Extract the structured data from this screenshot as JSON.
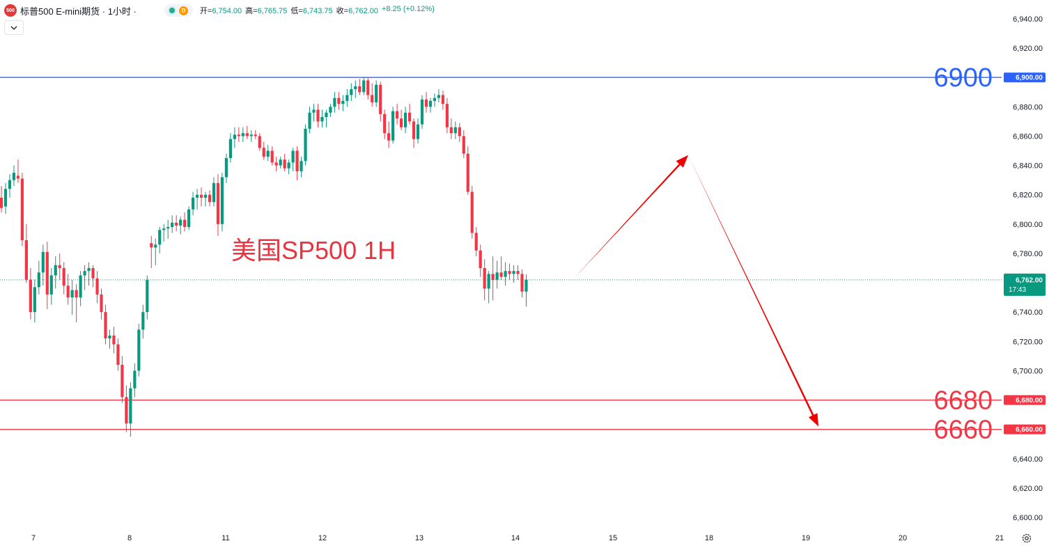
{
  "header": {
    "logo_text": "500",
    "title": "标普500 E-mini期货 · 1小时 ·",
    "interval_badge": "D",
    "ohlc": [
      {
        "label": "开=",
        "value": "6,754.00"
      },
      {
        "label": "高=",
        "value": "6,765.75"
      },
      {
        "label": "低=",
        "value": "6,743.75"
      },
      {
        "label": "收=",
        "value": "6,762.00"
      },
      {
        "label": "",
        "value": "+8.25 (+0.12%)"
      }
    ],
    "collapse_icon": "chevron-down-icon"
  },
  "colors": {
    "up": "#089981",
    "down": "#f23645",
    "resistance": "#2962ff",
    "support": "#f23645",
    "annotation": "#e8343f",
    "arrow": "#f20000"
  },
  "chart_data": {
    "type": "candlestick",
    "title": "美国SP500 1H",
    "x_tick_labels": [
      "7",
      "8",
      "11",
      "12",
      "13",
      "14",
      "15",
      "18",
      "19",
      "20",
      "21"
    ],
    "y_tick_labels": [
      "6,940.00",
      "6,920.00",
      "6,900.00",
      "6,880.00",
      "6,860.00",
      "6,840.00",
      "6,820.00",
      "6,800.00",
      "6,780.00",
      "6,760.00",
      "6,740.00",
      "6,720.00",
      "6,700.00",
      "6,680.00",
      "6,660.00",
      "6,640.00",
      "6,620.00",
      "6,600.00"
    ],
    "ylim": [
      6595,
      6943
    ],
    "last_price": {
      "value": 6762.0,
      "label": "6,762.00",
      "countdown": "17:43"
    },
    "horizontal_lines": [
      {
        "price": 6900,
        "label": "6900",
        "tag": "6,900.00",
        "color": "#2962ff"
      },
      {
        "price": 6680,
        "label": "6680",
        "tag": "6,680.00",
        "color": "#f23645"
      },
      {
        "price": 6660,
        "label": "6660",
        "tag": "6,660.00",
        "color": "#f23645"
      }
    ],
    "projection_path": [
      {
        "day": "14",
        "hour": 14,
        "price": 6763
      },
      {
        "day": "15",
        "hour": 18,
        "price": 6847
      },
      {
        "day": "19",
        "hour": 3,
        "price": 6662
      }
    ],
    "candles": [
      {
        "o": 6818,
        "h": 6826,
        "l": 6808,
        "c": 6811
      },
      {
        "o": 6812,
        "h": 6828,
        "l": 6807,
        "c": 6824
      },
      {
        "o": 6824,
        "h": 6834,
        "l": 6818,
        "c": 6830
      },
      {
        "o": 6830,
        "h": 6840,
        "l": 6826,
        "c": 6835
      },
      {
        "o": 6833,
        "h": 6844,
        "l": 6828,
        "c": 6831
      },
      {
        "o": 6831,
        "h": 6835,
        "l": 6785,
        "c": 6789
      },
      {
        "o": 6789,
        "h": 6800,
        "l": 6760,
        "c": 6762
      },
      {
        "o": 6762,
        "h": 6770,
        "l": 6735,
        "c": 6740
      },
      {
        "o": 6740,
        "h": 6762,
        "l": 6733,
        "c": 6757
      },
      {
        "o": 6757,
        "h": 6775,
        "l": 6752,
        "c": 6767
      },
      {
        "o": 6767,
        "h": 6786,
        "l": 6758,
        "c": 6781
      },
      {
        "o": 6781,
        "h": 6788,
        "l": 6742,
        "c": 6752
      },
      {
        "o": 6752,
        "h": 6770,
        "l": 6745,
        "c": 6765
      },
      {
        "o": 6765,
        "h": 6778,
        "l": 6756,
        "c": 6772
      },
      {
        "o": 6772,
        "h": 6780,
        "l": 6762,
        "c": 6770
      },
      {
        "o": 6770,
        "h": 6774,
        "l": 6752,
        "c": 6758
      },
      {
        "o": 6758,
        "h": 6766,
        "l": 6745,
        "c": 6750
      },
      {
        "o": 6750,
        "h": 6762,
        "l": 6738,
        "c": 6755
      },
      {
        "o": 6755,
        "h": 6759,
        "l": 6733,
        "c": 6750
      },
      {
        "o": 6750,
        "h": 6768,
        "l": 6744,
        "c": 6765
      },
      {
        "o": 6765,
        "h": 6772,
        "l": 6755,
        "c": 6768
      },
      {
        "o": 6768,
        "h": 6774,
        "l": 6758,
        "c": 6770
      },
      {
        "o": 6770,
        "h": 6772,
        "l": 6757,
        "c": 6763
      },
      {
        "o": 6763,
        "h": 6768,
        "l": 6746,
        "c": 6752
      },
      {
        "o": 6752,
        "h": 6756,
        "l": 6735,
        "c": 6740
      },
      {
        "o": 6740,
        "h": 6745,
        "l": 6718,
        "c": 6722
      },
      {
        "o": 6722,
        "h": 6728,
        "l": 6715,
        "c": 6724
      },
      {
        "o": 6724,
        "h": 6730,
        "l": 6712,
        "c": 6718
      },
      {
        "o": 6718,
        "h": 6722,
        "l": 6700,
        "c": 6704
      },
      {
        "o": 6704,
        "h": 6710,
        "l": 6678,
        "c": 6682
      },
      {
        "o": 6682,
        "h": 6690,
        "l": 6658,
        "c": 6664
      },
      {
        "o": 6664,
        "h": 6692,
        "l": 6655,
        "c": 6688
      },
      {
        "o": 6688,
        "h": 6705,
        "l": 6682,
        "c": 6700
      },
      {
        "o": 6700,
        "h": 6732,
        "l": 6696,
        "c": 6728
      },
      {
        "o": 6728,
        "h": 6745,
        "l": 6722,
        "c": 6740
      },
      {
        "o": 6740,
        "h": 6765,
        "l": 6735,
        "c": 6762
      },
      {
        "o": 6787,
        "h": 6792,
        "l": 6770,
        "c": 6784
      },
      {
        "o": 6784,
        "h": 6790,
        "l": 6772,
        "c": 6786
      },
      {
        "o": 6786,
        "h": 6798,
        "l": 6780,
        "c": 6796
      },
      {
        "o": 6796,
        "h": 6800,
        "l": 6788,
        "c": 6797
      },
      {
        "o": 6797,
        "h": 6803,
        "l": 6790,
        "c": 6798
      },
      {
        "o": 6798,
        "h": 6806,
        "l": 6794,
        "c": 6801
      },
      {
        "o": 6801,
        "h": 6806,
        "l": 6795,
        "c": 6799
      },
      {
        "o": 6799,
        "h": 6805,
        "l": 6793,
        "c": 6803
      },
      {
        "o": 6803,
        "h": 6808,
        "l": 6795,
        "c": 6798
      },
      {
        "o": 6798,
        "h": 6812,
        "l": 6796,
        "c": 6810
      },
      {
        "o": 6810,
        "h": 6822,
        "l": 6806,
        "c": 6818
      },
      {
        "o": 6818,
        "h": 6824,
        "l": 6810,
        "c": 6820
      },
      {
        "o": 6820,
        "h": 6825,
        "l": 6812,
        "c": 6818
      },
      {
        "o": 6818,
        "h": 6822,
        "l": 6812,
        "c": 6820
      },
      {
        "o": 6820,
        "h": 6823,
        "l": 6812,
        "c": 6815
      },
      {
        "o": 6815,
        "h": 6832,
        "l": 6812,
        "c": 6828
      },
      {
        "o": 6828,
        "h": 6834,
        "l": 6792,
        "c": 6800
      },
      {
        "o": 6800,
        "h": 6835,
        "l": 6795,
        "c": 6832
      },
      {
        "o": 6832,
        "h": 6848,
        "l": 6828,
        "c": 6845
      },
      {
        "o": 6845,
        "h": 6862,
        "l": 6842,
        "c": 6858
      },
      {
        "o": 6858,
        "h": 6866,
        "l": 6852,
        "c": 6861
      },
      {
        "o": 6861,
        "h": 6866,
        "l": 6856,
        "c": 6860
      },
      {
        "o": 6860,
        "h": 6866,
        "l": 6856,
        "c": 6862
      },
      {
        "o": 6862,
        "h": 6867,
        "l": 6858,
        "c": 6860
      },
      {
        "o": 6860,
        "h": 6864,
        "l": 6856,
        "c": 6861
      },
      {
        "o": 6861,
        "h": 6864,
        "l": 6858,
        "c": 6860
      },
      {
        "o": 6860,
        "h": 6862,
        "l": 6850,
        "c": 6852
      },
      {
        "o": 6852,
        "h": 6856,
        "l": 6844,
        "c": 6846
      },
      {
        "o": 6846,
        "h": 6854,
        "l": 6843,
        "c": 6850
      },
      {
        "o": 6850,
        "h": 6853,
        "l": 6840,
        "c": 6842
      },
      {
        "o": 6842,
        "h": 6846,
        "l": 6836,
        "c": 6840
      },
      {
        "o": 6840,
        "h": 6846,
        "l": 6838,
        "c": 6844
      },
      {
        "o": 6844,
        "h": 6848,
        "l": 6836,
        "c": 6838
      },
      {
        "o": 6838,
        "h": 6844,
        "l": 6834,
        "c": 6842
      },
      {
        "o": 6842,
        "h": 6852,
        "l": 6836,
        "c": 6850
      },
      {
        "o": 6850,
        "h": 6853,
        "l": 6830,
        "c": 6836
      },
      {
        "o": 6836,
        "h": 6846,
        "l": 6832,
        "c": 6843
      },
      {
        "o": 6843,
        "h": 6868,
        "l": 6840,
        "c": 6865
      },
      {
        "o": 6865,
        "h": 6880,
        "l": 6862,
        "c": 6876
      },
      {
        "o": 6876,
        "h": 6882,
        "l": 6870,
        "c": 6878
      },
      {
        "o": 6878,
        "h": 6882,
        "l": 6866,
        "c": 6870
      },
      {
        "o": 6870,
        "h": 6878,
        "l": 6866,
        "c": 6873
      },
      {
        "o": 6873,
        "h": 6878,
        "l": 6866,
        "c": 6876
      },
      {
        "o": 6876,
        "h": 6882,
        "l": 6873,
        "c": 6880
      },
      {
        "o": 6880,
        "h": 6890,
        "l": 6876,
        "c": 6886
      },
      {
        "o": 6886,
        "h": 6890,
        "l": 6878,
        "c": 6882
      },
      {
        "o": 6882,
        "h": 6888,
        "l": 6877,
        "c": 6884
      },
      {
        "o": 6884,
        "h": 6892,
        "l": 6880,
        "c": 6888
      },
      {
        "o": 6888,
        "h": 6896,
        "l": 6884,
        "c": 6892
      },
      {
        "o": 6892,
        "h": 6898,
        "l": 6886,
        "c": 6894
      },
      {
        "o": 6894,
        "h": 6899,
        "l": 6888,
        "c": 6890
      },
      {
        "o": 6890,
        "h": 6900,
        "l": 6888,
        "c": 6898
      },
      {
        "o": 6898,
        "h": 6900,
        "l": 6885,
        "c": 6888
      },
      {
        "o": 6888,
        "h": 6896,
        "l": 6880,
        "c": 6883
      },
      {
        "o": 6883,
        "h": 6898,
        "l": 6880,
        "c": 6895
      },
      {
        "o": 6895,
        "h": 6897,
        "l": 6870,
        "c": 6875
      },
      {
        "o": 6875,
        "h": 6878,
        "l": 6858,
        "c": 6862
      },
      {
        "o": 6862,
        "h": 6870,
        "l": 6852,
        "c": 6857
      },
      {
        "o": 6857,
        "h": 6880,
        "l": 6855,
        "c": 6877
      },
      {
        "o": 6877,
        "h": 6882,
        "l": 6868,
        "c": 6872
      },
      {
        "o": 6872,
        "h": 6878,
        "l": 6864,
        "c": 6866
      },
      {
        "o": 6866,
        "h": 6880,
        "l": 6862,
        "c": 6876
      },
      {
        "o": 6876,
        "h": 6882,
        "l": 6868,
        "c": 6870
      },
      {
        "o": 6870,
        "h": 6872,
        "l": 6852,
        "c": 6858
      },
      {
        "o": 6858,
        "h": 6872,
        "l": 6855,
        "c": 6868
      },
      {
        "o": 6868,
        "h": 6888,
        "l": 6865,
        "c": 6885
      },
      {
        "o": 6885,
        "h": 6890,
        "l": 6876,
        "c": 6880
      },
      {
        "o": 6880,
        "h": 6886,
        "l": 6876,
        "c": 6884
      },
      {
        "o": 6884,
        "h": 6889,
        "l": 6880,
        "c": 6886
      },
      {
        "o": 6886,
        "h": 6892,
        "l": 6883,
        "c": 6888
      },
      {
        "o": 6888,
        "h": 6891,
        "l": 6878,
        "c": 6882
      },
      {
        "o": 6882,
        "h": 6886,
        "l": 6862,
        "c": 6866
      },
      {
        "o": 6866,
        "h": 6872,
        "l": 6858,
        "c": 6862
      },
      {
        "o": 6862,
        "h": 6870,
        "l": 6858,
        "c": 6866
      },
      {
        "o": 6866,
        "h": 6869,
        "l": 6856,
        "c": 6860
      },
      {
        "o": 6860,
        "h": 6864,
        "l": 6845,
        "c": 6848
      },
      {
        "o": 6848,
        "h": 6853,
        "l": 6820,
        "c": 6822
      },
      {
        "o": 6822,
        "h": 6826,
        "l": 6790,
        "c": 6794
      },
      {
        "o": 6794,
        "h": 6798,
        "l": 6778,
        "c": 6782
      },
      {
        "o": 6782,
        "h": 6786,
        "l": 6764,
        "c": 6770
      },
      {
        "o": 6770,
        "h": 6776,
        "l": 6748,
        "c": 6756
      },
      {
        "o": 6756,
        "h": 6768,
        "l": 6746,
        "c": 6766
      },
      {
        "o": 6766,
        "h": 6778,
        "l": 6748,
        "c": 6762
      },
      {
        "o": 6762,
        "h": 6775,
        "l": 6756,
        "c": 6767
      },
      {
        "o": 6767,
        "h": 6778,
        "l": 6762,
        "c": 6764
      },
      {
        "o": 6764,
        "h": 6774,
        "l": 6758,
        "c": 6768
      },
      {
        "o": 6768,
        "h": 6773,
        "l": 6762,
        "c": 6766
      },
      {
        "o": 6766,
        "h": 6772,
        "l": 6760,
        "c": 6768
      },
      {
        "o": 6768,
        "h": 6772,
        "l": 6762,
        "c": 6766
      },
      {
        "o": 6766,
        "h": 6769,
        "l": 6750,
        "c": 6754
      },
      {
        "o": 6754,
        "h": 6765.75,
        "l": 6743.75,
        "c": 6762
      }
    ]
  },
  "settings_icon": "gear-icon"
}
